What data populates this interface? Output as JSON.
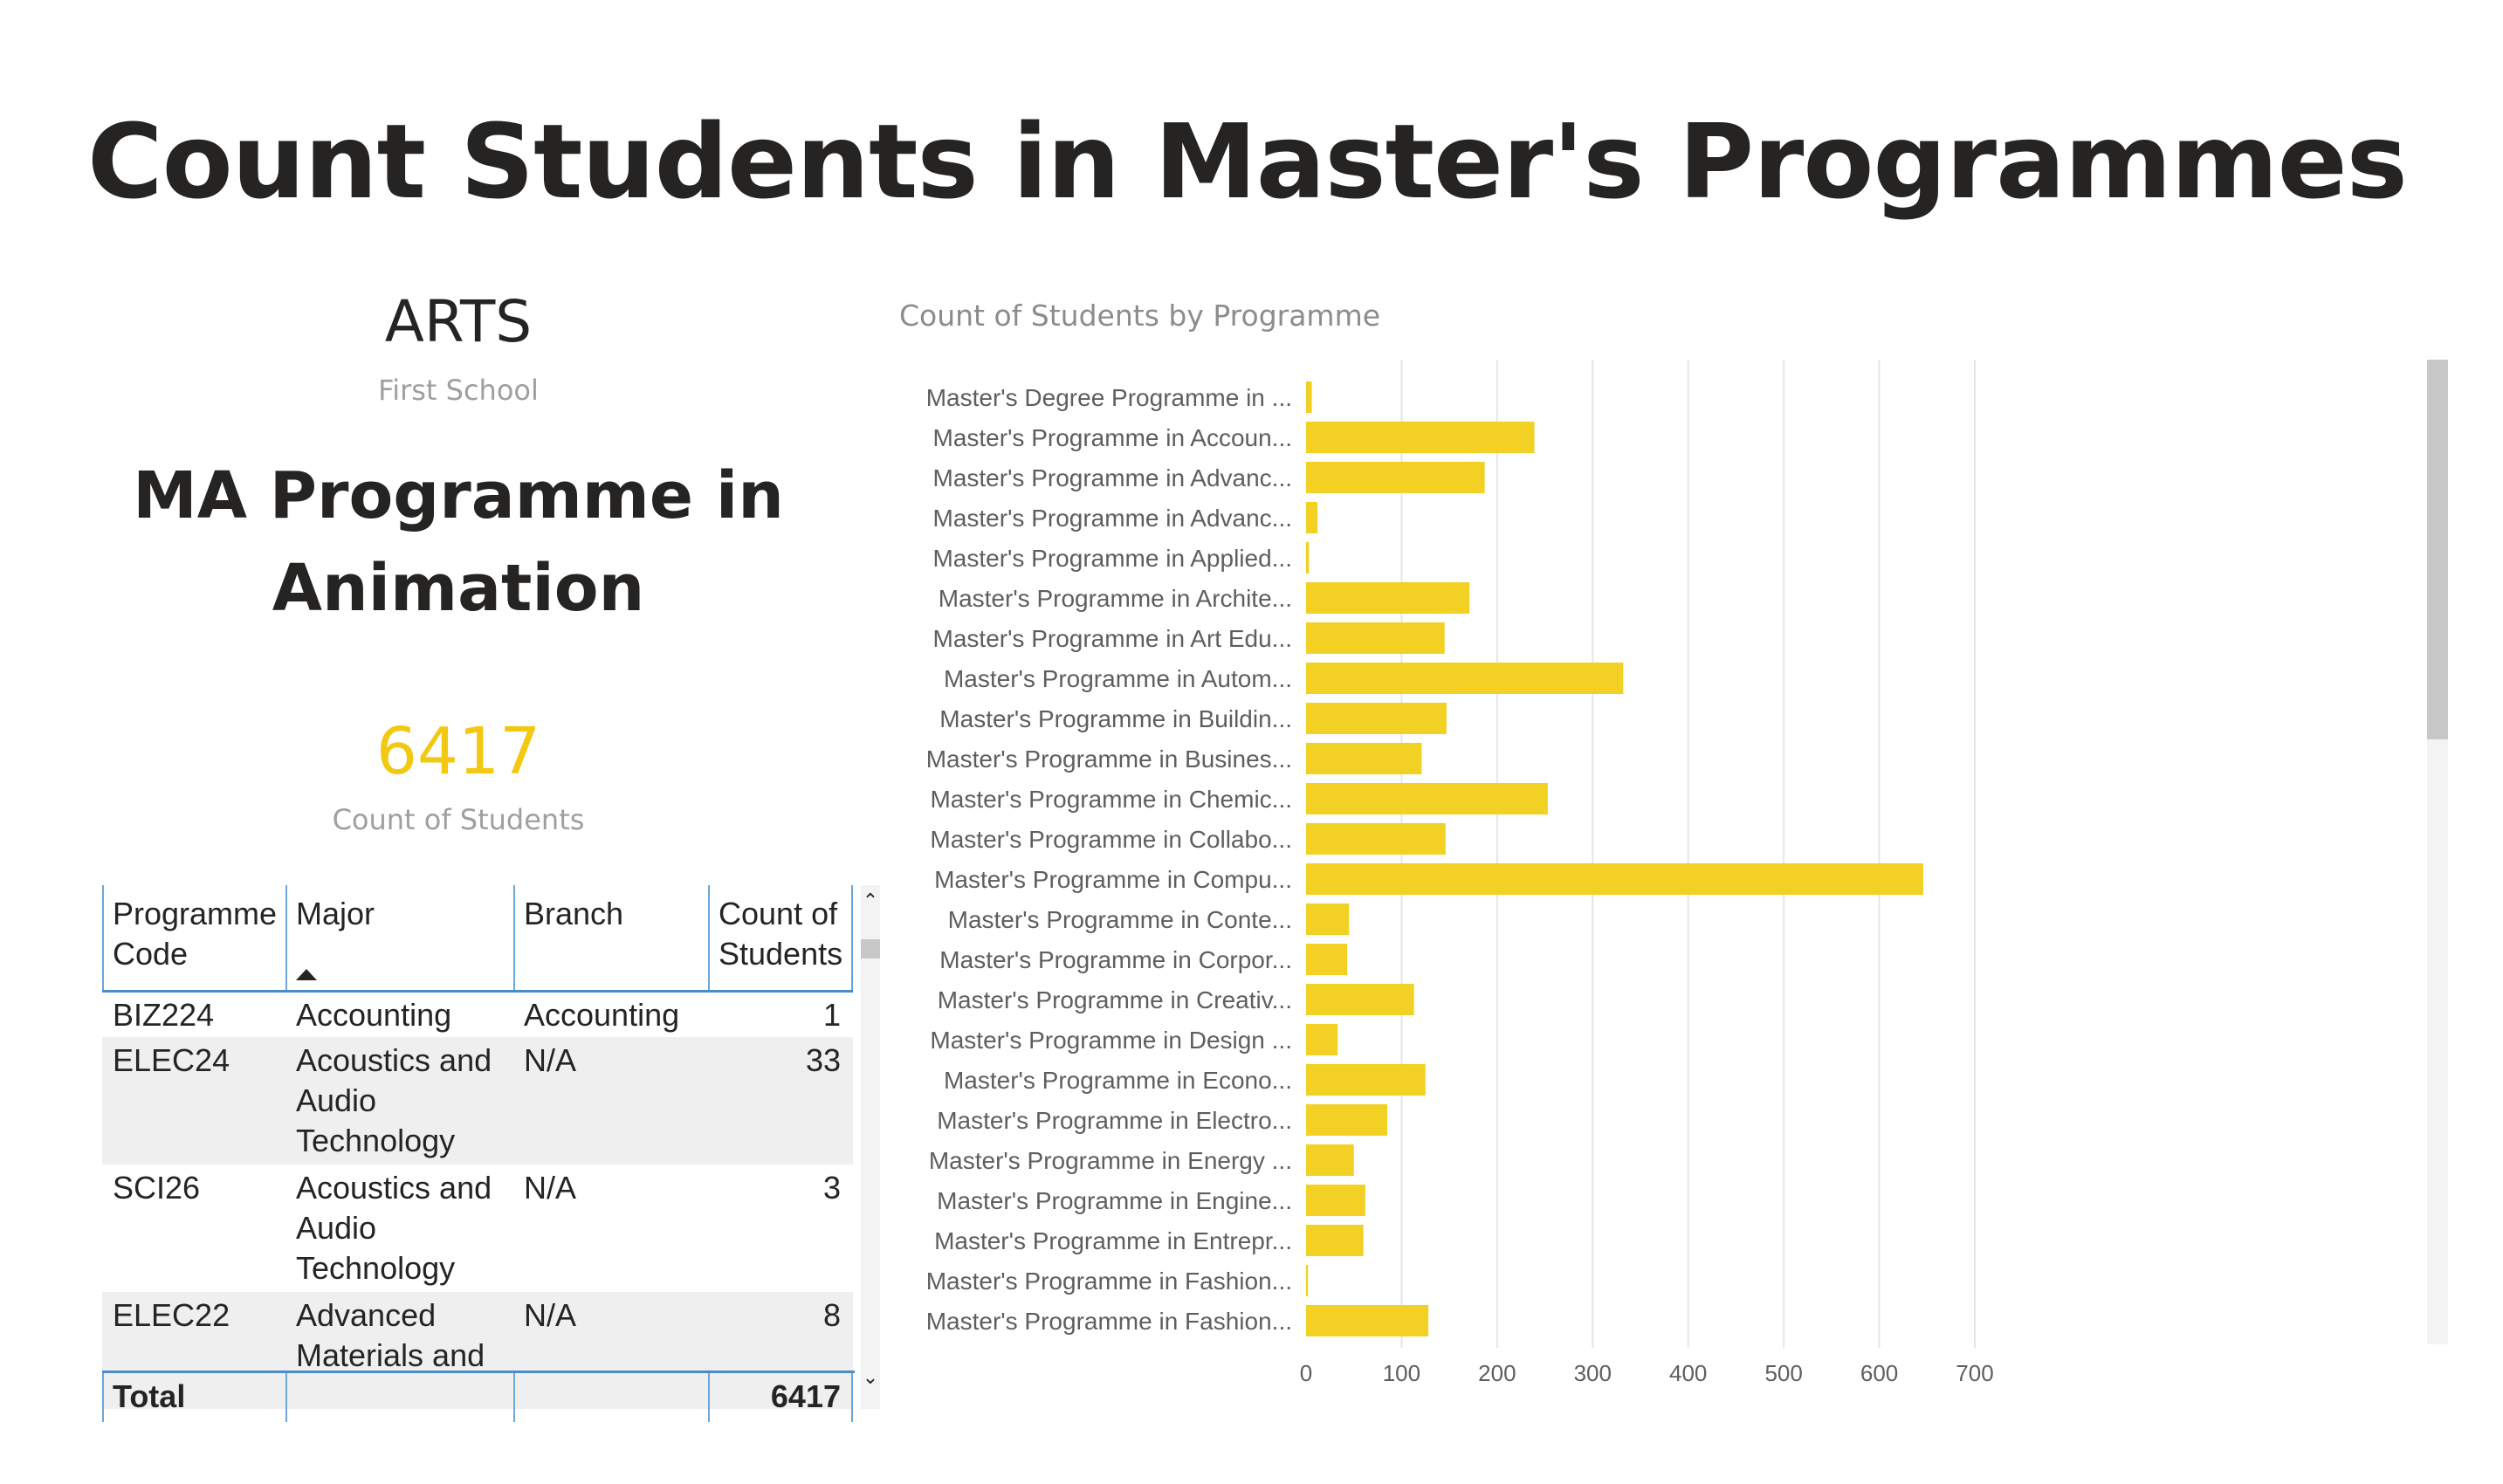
{
  "page": {
    "title": "Count Students in Master's Programmes"
  },
  "cards": {
    "school_value": "ARTS",
    "school_label": "First School",
    "programme_value": "MA Programme in Animation",
    "count_value": "6417",
    "count_label": "Count of Students"
  },
  "table": {
    "headers": [
      "Programme Code",
      "Major",
      "Branch",
      "Count of Students"
    ],
    "rows": [
      {
        "code": "BIZ224",
        "major": "Accounting",
        "branch": "Accounting",
        "count": "1"
      },
      {
        "code": "ELEC24",
        "major": "Acoustics and Audio Technology",
        "branch": "N/A",
        "count": "33"
      },
      {
        "code": "SCI26",
        "major": "Acoustics and Audio Technology",
        "branch": "N/A",
        "count": "3"
      },
      {
        "code": "ELEC22",
        "major": "Advanced Materials and",
        "branch": "N/A",
        "count": "8"
      }
    ],
    "total_label": "Total",
    "total_value": "6417",
    "scroll_up_icon": "chevron-up-icon",
    "scroll_down_icon": "chevron-down-icon",
    "sort_icon": "sort-ascending-icon"
  },
  "chart_data": {
    "type": "bar",
    "orientation": "horizontal",
    "title": "Count of Students by Programme",
    "xlabel": "",
    "ylabel": "",
    "xlim": [
      0,
      700
    ],
    "xticks": [
      0,
      100,
      200,
      300,
      400,
      500,
      600,
      700
    ],
    "grid": true,
    "bar_color": "#f2d024",
    "categories": [
      "Master's Degree Programme in ...",
      "Master's Programme in Accoun...",
      "Master's Programme in Advanc...",
      "Master's Programme in Advanc...",
      "Master's Programme in Applied...",
      "Master's Programme in Archite...",
      "Master's Programme in Art Edu...",
      "Master's Programme in Autom...",
      "Master's Programme in Buildin...",
      "Master's Programme in Busines...",
      "Master's Programme in Chemic...",
      "Master's Programme in Collabo...",
      "Master's Programme in Compu...",
      "Master's Programme in Conte...",
      "Master's Programme in Corpor...",
      "Master's Programme in Creativ...",
      "Master's Programme in Design ...",
      "Master's Programme in Econo...",
      "Master's Programme in Electro...",
      "Master's Programme in Energy ...",
      "Master's Programme in Engine...",
      "Master's Programme in Entrepr...",
      "Master's Programme in Fashion...",
      "Master's Programme in Fashion..."
    ],
    "values": [
      6,
      239,
      187,
      12,
      3,
      171,
      145,
      332,
      147,
      121,
      253,
      146,
      646,
      45,
      43,
      113,
      33,
      125,
      85,
      50,
      62,
      60,
      2,
      128
    ]
  }
}
